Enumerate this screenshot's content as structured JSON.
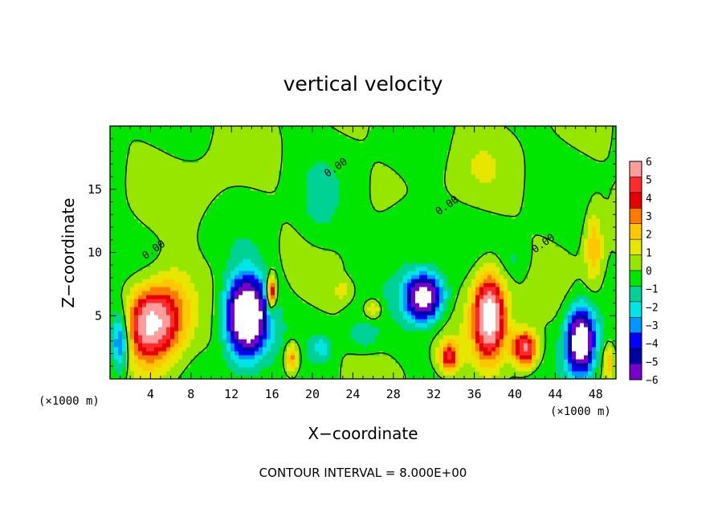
{
  "chart_data": {
    "type": "heatmap",
    "title": "vertical velocity",
    "xlabel": "X−coordinate",
    "ylabel": "Z−coordinate",
    "x_unit": "(×1000 m)",
    "y_unit": "(×1000 m)",
    "footer": "CONTOUR INTERVAL = 8.000E+00",
    "xlim": [
      0,
      50
    ],
    "ylim": [
      0,
      20
    ],
    "x_ticks": [
      4,
      8,
      12,
      16,
      20,
      24,
      28,
      32,
      36,
      40,
      44,
      48
    ],
    "y_ticks": [
      5,
      10,
      15
    ],
    "colorbar": {
      "ticks": [
        6,
        5,
        4,
        3,
        2,
        1,
        0,
        -1,
        -2,
        -3,
        -4,
        -5,
        -6
      ],
      "colors": [
        "#ff9d9d",
        "#ff2a2a",
        "#e60000",
        "#ff7a00",
        "#ffc800",
        "#e6e600",
        "#96e600",
        "#00e600",
        "#00d296",
        "#00e6e6",
        "#0096ff",
        "#0000ff",
        "#0000a0",
        "#7800c8"
      ]
    },
    "contour_labels": [
      {
        "text": "0.00",
        "x": 4.5,
        "z": 10.0
      },
      {
        "text": "0.00",
        "x": 22.5,
        "z": 16.5
      },
      {
        "text": "0.00",
        "x": 33.5,
        "z": 13.5
      },
      {
        "text": "0.00",
        "x": 43.0,
        "z": 10.5
      }
    ],
    "features": [
      {
        "kind": "updraft",
        "x": 4.0,
        "z": 4.5,
        "amp": 8,
        "sx": 2.3,
        "sz": 2.9
      },
      {
        "kind": "updraft",
        "x": 6.5,
        "z": 5.5,
        "amp": 2.5,
        "sx": 2.0,
        "sz": 3.5
      },
      {
        "kind": "downdraft",
        "x": 1.0,
        "z": 3.0,
        "amp": -5,
        "sx": 0.9,
        "sz": 2.5
      },
      {
        "kind": "downdraft",
        "x": 13.5,
        "z": 5.0,
        "amp": -12,
        "sx": 2.0,
        "sz": 3.0
      },
      {
        "kind": "updraft",
        "x": 15.9,
        "z": 6.8,
        "amp": 7,
        "sx": 0.45,
        "sz": 1.3
      },
      {
        "kind": "updraft",
        "x": 18.0,
        "z": 1.7,
        "amp": 4,
        "sx": 0.7,
        "sz": 1.2
      },
      {
        "kind": "downdraft",
        "x": 21.0,
        "z": 2.5,
        "amp": -2,
        "sx": 1.0,
        "sz": 1.0
      },
      {
        "kind": "downdraft",
        "x": 31.0,
        "z": 6.5,
        "amp": -9,
        "sx": 1.8,
        "sz": 1.8
      },
      {
        "kind": "updraft",
        "x": 33.5,
        "z": 1.8,
        "amp": 5,
        "sx": 1.0,
        "sz": 1.2
      },
      {
        "kind": "updraft",
        "x": 37.5,
        "z": 5.0,
        "amp": 9,
        "sx": 1.6,
        "sz": 3.3
      },
      {
        "kind": "updraft",
        "x": 41.0,
        "z": 2.4,
        "amp": 7,
        "sx": 1.3,
        "sz": 1.5
      },
      {
        "kind": "downdraft",
        "x": 46.5,
        "z": 3.0,
        "amp": -10,
        "sx": 1.4,
        "sz": 2.6
      },
      {
        "kind": "updraft",
        "x": 47.8,
        "z": 10.5,
        "amp": 3,
        "sx": 0.9,
        "sz": 3.0
      },
      {
        "kind": "updraft",
        "x": 49.3,
        "z": 1.5,
        "amp": 3,
        "sx": 0.5,
        "sz": 1.2
      },
      {
        "kind": "updraft",
        "x": 26.0,
        "z": 5.5,
        "amp": 2.5,
        "sx": 0.8,
        "sz": 0.8
      },
      {
        "kind": "updraft",
        "x": 23.0,
        "z": 7.0,
        "amp": 1.5,
        "sx": 1.0,
        "sz": 0.8
      },
      {
        "kind": "downdraft",
        "x": 25.0,
        "z": 3.5,
        "amp": -1.8,
        "sx": 1.5,
        "sz": 1.2
      },
      {
        "kind": "downdraft",
        "x": 29.0,
        "z": 12.0,
        "amp": -1.0,
        "sx": 2.5,
        "sz": 3.0
      },
      {
        "kind": "downdraft",
        "x": 20.5,
        "z": 13.0,
        "amp": -1.0,
        "sx": 2.0,
        "sz": 3.0
      },
      {
        "kind": "downdraft",
        "x": 40.0,
        "z": 9.5,
        "amp": -1.0,
        "sx": 1.5,
        "sz": 1.5
      },
      {
        "kind": "updraft",
        "x": 36.0,
        "z": 16.0,
        "amp": 0.7,
        "sx": 3.0,
        "sz": 3.0
      },
      {
        "kind": "updraft",
        "x": 10.0,
        "z": 15.0,
        "amp": 0.6,
        "sx": 3.0,
        "sz": 3.0
      }
    ]
  }
}
